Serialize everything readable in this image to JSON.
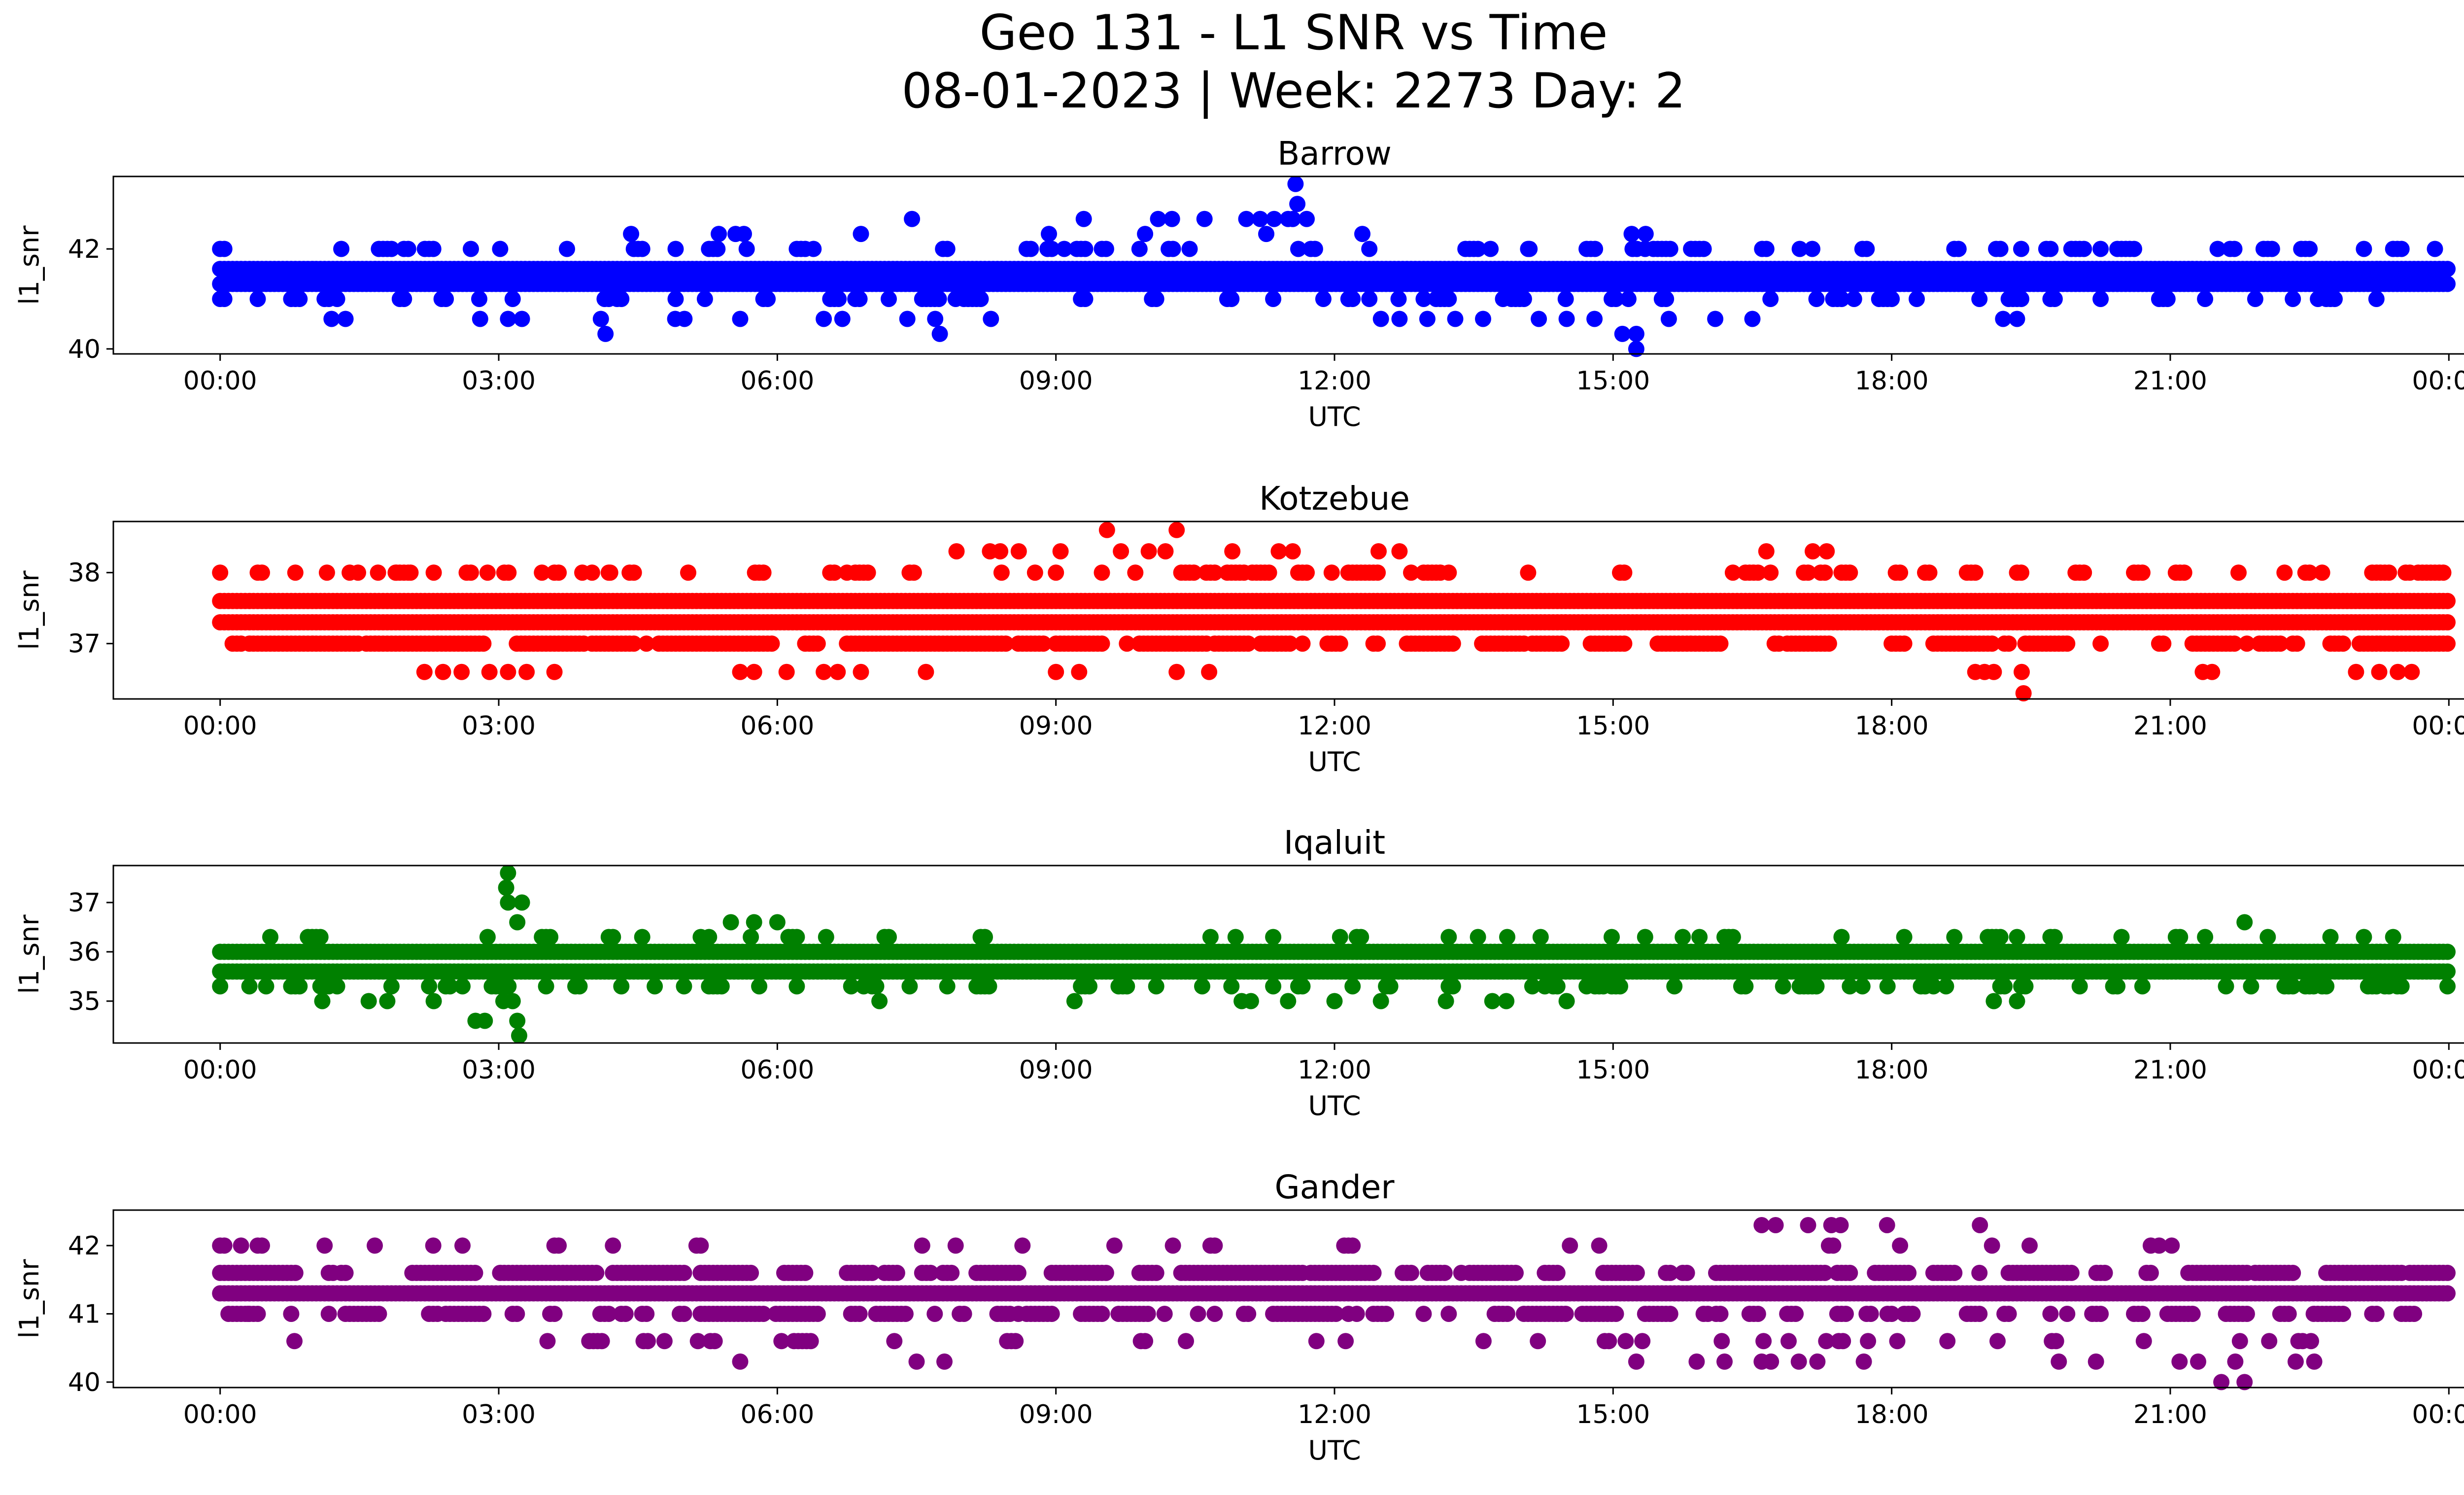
{
  "figure": {
    "title_line1": "Geo 131 - L1 SNR vs Time",
    "title_line2": "08-01-2023 | Week: 2273 Day: 2"
  },
  "chart_data": [
    {
      "type": "scatter",
      "title": "Barrow",
      "xlabel": "UTC",
      "ylabel": "l1_snr",
      "color": "#0000ff",
      "xlim_hours": [
        -1.15,
        25.15
      ],
      "ylim": [
        39.9,
        43.45
      ],
      "x_ticks": [
        "00:00",
        "03:00",
        "06:00",
        "09:00",
        "12:00",
        "15:00",
        "18:00",
        "21:00",
        "00:00"
      ],
      "y_ticks": [
        40,
        42
      ],
      "bands": [
        {
          "y": 41.0,
          "x_range": [
            0.0,
            24.0
          ],
          "density": 0.45
        },
        {
          "y": 41.3,
          "x_range": [
            0.0,
            24.0
          ],
          "density": 1.0
        },
        {
          "y": 41.6,
          "x_range": [
            0.0,
            24.0
          ],
          "density": 1.0
        },
        {
          "y": 42.0,
          "x_range": [
            0.0,
            24.0
          ],
          "density": 0.5
        },
        {
          "y": 42.3,
          "x_range": [
            0.6,
            11.8
          ],
          "density": 0.15
        }
      ],
      "points": [
        {
          "x": 1.2,
          "y": 40.6
        },
        {
          "x": 1.35,
          "y": 40.6
        },
        {
          "x": 2.8,
          "y": 40.6
        },
        {
          "x": 3.1,
          "y": 40.6
        },
        {
          "x": 3.25,
          "y": 40.6
        },
        {
          "x": 4.1,
          "y": 40.6
        },
        {
          "x": 4.15,
          "y": 40.3
        },
        {
          "x": 4.9,
          "y": 40.6
        },
        {
          "x": 5.0,
          "y": 40.6
        },
        {
          "x": 5.6,
          "y": 40.6
        },
        {
          "x": 6.5,
          "y": 40.6
        },
        {
          "x": 6.7,
          "y": 40.6
        },
        {
          "x": 7.4,
          "y": 40.6
        },
        {
          "x": 7.7,
          "y": 40.6
        },
        {
          "x": 7.75,
          "y": 40.3
        },
        {
          "x": 8.3,
          "y": 40.6
        },
        {
          "x": 7.45,
          "y": 42.6
        },
        {
          "x": 9.3,
          "y": 42.6
        },
        {
          "x": 10.1,
          "y": 42.6
        },
        {
          "x": 10.25,
          "y": 42.6
        },
        {
          "x": 10.6,
          "y": 42.6
        },
        {
          "x": 11.05,
          "y": 42.6
        },
        {
          "x": 11.2,
          "y": 42.6
        },
        {
          "x": 11.35,
          "y": 42.6
        },
        {
          "x": 11.55,
          "y": 42.6
        },
        {
          "x": 11.6,
          "y": 42.9
        },
        {
          "x": 11.58,
          "y": 43.3
        },
        {
          "x": 11.5,
          "y": 42.6
        },
        {
          "x": 11.7,
          "y": 42.6
        },
        {
          "x": 12.3,
          "y": 42.3
        },
        {
          "x": 12.5,
          "y": 40.6
        },
        {
          "x": 12.7,
          "y": 40.6
        },
        {
          "x": 13.0,
          "y": 40.6
        },
        {
          "x": 13.3,
          "y": 40.6
        },
        {
          "x": 13.6,
          "y": 40.6
        },
        {
          "x": 14.2,
          "y": 40.6
        },
        {
          "x": 14.5,
          "y": 40.6
        },
        {
          "x": 14.8,
          "y": 40.6
        },
        {
          "x": 15.1,
          "y": 40.3
        },
        {
          "x": 15.25,
          "y": 40.0
        },
        {
          "x": 15.25,
          "y": 40.3
        },
        {
          "x": 15.6,
          "y": 40.6
        },
        {
          "x": 16.1,
          "y": 40.6
        },
        {
          "x": 16.5,
          "y": 40.6
        },
        {
          "x": 19.2,
          "y": 40.6
        },
        {
          "x": 19.35,
          "y": 40.6
        },
        {
          "x": 15.2,
          "y": 42.3
        },
        {
          "x": 15.35,
          "y": 42.3
        },
        {
          "x": 14.1,
          "y": 42.0
        },
        {
          "x": 20.25,
          "y": 42.0
        }
      ]
    },
    {
      "type": "scatter",
      "title": "Kotzebue",
      "xlabel": "UTC",
      "ylabel": "l1_snr",
      "color": "#ff0000",
      "xlim_hours": [
        -1.15,
        25.15
      ],
      "ylim": [
        36.22,
        38.72
      ],
      "x_ticks": [
        "00:00",
        "03:00",
        "06:00",
        "09:00",
        "12:00",
        "15:00",
        "18:00",
        "21:00",
        "00:00"
      ],
      "y_ticks": [
        37,
        38
      ],
      "bands": [
        {
          "y": 37.0,
          "x_range": [
            0.0,
            24.0
          ],
          "density": 0.9
        },
        {
          "y": 37.3,
          "x_range": [
            0.0,
            24.0
          ],
          "density": 1.0
        },
        {
          "y": 37.6,
          "x_range": [
            0.0,
            24.0
          ],
          "density": 1.0
        },
        {
          "y": 38.0,
          "x_range": [
            0.0,
            24.0
          ],
          "density": 0.55
        },
        {
          "y": 38.3,
          "x_range": [
            5.5,
            12.8
          ],
          "density": 0.12
        }
      ],
      "points": [
        {
          "x": 2.2,
          "y": 36.6
        },
        {
          "x": 2.4,
          "y": 36.6
        },
        {
          "x": 2.6,
          "y": 36.6
        },
        {
          "x": 2.9,
          "y": 36.6
        },
        {
          "x": 3.1,
          "y": 36.6
        },
        {
          "x": 3.3,
          "y": 36.6
        },
        {
          "x": 3.6,
          "y": 36.6
        },
        {
          "x": 5.6,
          "y": 36.6
        },
        {
          "x": 5.75,
          "y": 36.6
        },
        {
          "x": 6.1,
          "y": 36.6
        },
        {
          "x": 6.5,
          "y": 36.6
        },
        {
          "x": 6.65,
          "y": 36.6
        },
        {
          "x": 6.9,
          "y": 36.6
        },
        {
          "x": 7.6,
          "y": 36.6
        },
        {
          "x": 9.0,
          "y": 36.6
        },
        {
          "x": 9.25,
          "y": 36.6
        },
        {
          "x": 10.3,
          "y": 36.6
        },
        {
          "x": 10.65,
          "y": 36.6
        },
        {
          "x": 18.9,
          "y": 36.6
        },
        {
          "x": 19.0,
          "y": 36.6
        },
        {
          "x": 19.1,
          "y": 36.6
        },
        {
          "x": 19.4,
          "y": 36.6
        },
        {
          "x": 19.42,
          "y": 36.3
        },
        {
          "x": 21.35,
          "y": 36.6
        },
        {
          "x": 21.45,
          "y": 36.6
        },
        {
          "x": 23.0,
          "y": 36.6
        },
        {
          "x": 23.25,
          "y": 36.6
        },
        {
          "x": 23.45,
          "y": 36.6
        },
        {
          "x": 23.6,
          "y": 36.6
        },
        {
          "x": 9.55,
          "y": 38.6
        },
        {
          "x": 10.3,
          "y": 38.6
        },
        {
          "x": 8.4,
          "y": 38.3
        },
        {
          "x": 8.6,
          "y": 38.3
        },
        {
          "x": 9.05,
          "y": 38.3
        },
        {
          "x": 9.7,
          "y": 38.3
        },
        {
          "x": 10.0,
          "y": 38.3
        },
        {
          "x": 10.9,
          "y": 38.3
        },
        {
          "x": 11.4,
          "y": 38.3
        },
        {
          "x": 11.55,
          "y": 38.3
        },
        {
          "x": 12.7,
          "y": 38.3
        },
        {
          "x": 16.65,
          "y": 38.3
        },
        {
          "x": 17.15,
          "y": 38.3
        },
        {
          "x": 17.3,
          "y": 38.3
        },
        {
          "x": 1.15,
          "y": 38.0
        },
        {
          "x": 1.7,
          "y": 38.0
        },
        {
          "x": 1.9,
          "y": 38.0
        },
        {
          "x": 2.05,
          "y": 38.0
        },
        {
          "x": 2.3,
          "y": 38.0
        },
        {
          "x": 3.9,
          "y": 38.0
        },
        {
          "x": 4.2,
          "y": 38.0
        }
      ]
    },
    {
      "type": "scatter",
      "title": "Iqaluit",
      "xlabel": "UTC",
      "ylabel": "l1_snr",
      "color": "#008000",
      "xlim_hours": [
        -1.15,
        25.15
      ],
      "ylim": [
        34.15,
        37.75
      ],
      "x_ticks": [
        "00:00",
        "03:00",
        "06:00",
        "09:00",
        "12:00",
        "15:00",
        "18:00",
        "21:00",
        "00:00"
      ],
      "y_ticks": [
        35,
        36,
        37
      ],
      "bands": [
        {
          "y": 35.3,
          "x_range": [
            0.0,
            24.0
          ],
          "density": 0.55
        },
        {
          "y": 35.6,
          "x_range": [
            0.0,
            24.0
          ],
          "density": 1.0
        },
        {
          "y": 36.0,
          "x_range": [
            0.0,
            24.0
          ],
          "density": 1.0
        },
        {
          "y": 36.3,
          "x_range": [
            0.0,
            24.0
          ],
          "density": 0.35
        }
      ],
      "points": [
        {
          "x": 3.1,
          "y": 37.6
        },
        {
          "x": 3.08,
          "y": 37.3
        },
        {
          "x": 3.1,
          "y": 37.0
        },
        {
          "x": 3.25,
          "y": 37.0
        },
        {
          "x": 3.2,
          "y": 36.6
        },
        {
          "x": 3.15,
          "y": 35.0
        },
        {
          "x": 3.2,
          "y": 34.6
        },
        {
          "x": 3.22,
          "y": 34.3
        },
        {
          "x": 2.75,
          "y": 34.6
        },
        {
          "x": 2.85,
          "y": 34.6
        },
        {
          "x": 3.05,
          "y": 35.0
        },
        {
          "x": 5.5,
          "y": 36.6
        },
        {
          "x": 5.75,
          "y": 36.6
        },
        {
          "x": 6.0,
          "y": 36.6
        },
        {
          "x": 21.8,
          "y": 36.6
        },
        {
          "x": 1.1,
          "y": 35.0
        },
        {
          "x": 1.6,
          "y": 35.0
        },
        {
          "x": 1.8,
          "y": 35.0
        },
        {
          "x": 2.3,
          "y": 35.0
        },
        {
          "x": 7.1,
          "y": 35.0
        },
        {
          "x": 9.2,
          "y": 35.0
        },
        {
          "x": 11.0,
          "y": 35.0
        },
        {
          "x": 11.1,
          "y": 35.0
        },
        {
          "x": 11.5,
          "y": 35.0
        },
        {
          "x": 12.0,
          "y": 35.0
        },
        {
          "x": 12.5,
          "y": 35.0
        },
        {
          "x": 13.2,
          "y": 35.0
        },
        {
          "x": 13.7,
          "y": 35.0
        },
        {
          "x": 13.85,
          "y": 35.0
        },
        {
          "x": 14.5,
          "y": 35.0
        },
        {
          "x": 19.1,
          "y": 35.0
        },
        {
          "x": 19.35,
          "y": 35.0
        }
      ]
    },
    {
      "type": "scatter",
      "title": "Gander",
      "xlabel": "UTC",
      "ylabel": "l1_snr",
      "color": "#800080",
      "xlim_hours": [
        -1.15,
        25.15
      ],
      "ylim": [
        39.92,
        42.52
      ],
      "x_ticks": [
        "00:00",
        "03:00",
        "06:00",
        "09:00",
        "12:00",
        "15:00",
        "18:00",
        "21:00",
        "00:00"
      ],
      "y_ticks": [
        40,
        41,
        42
      ],
      "bands": [
        {
          "y": 41.0,
          "x_range": [
            0.0,
            24.0
          ],
          "density": 0.75
        },
        {
          "y": 41.3,
          "x_range": [
            0.0,
            24.0
          ],
          "density": 1.0
        },
        {
          "y": 41.6,
          "x_range": [
            0.0,
            24.0
          ],
          "density": 0.9
        },
        {
          "y": 40.6,
          "x_range": [
            3.3,
            22.6
          ],
          "density": 0.4
        },
        {
          "y": 42.0,
          "x_range": [
            0.0,
            24.0
          ],
          "density": 0.2
        }
      ],
      "points": [
        {
          "x": 0.3,
          "y": 41.0
        },
        {
          "x": 0.8,
          "y": 40.6
        },
        {
          "x": 5.6,
          "y": 40.3
        },
        {
          "x": 7.5,
          "y": 40.3
        },
        {
          "x": 7.8,
          "y": 40.3
        },
        {
          "x": 15.25,
          "y": 40.3
        },
        {
          "x": 15.9,
          "y": 40.3
        },
        {
          "x": 16.2,
          "y": 40.3
        },
        {
          "x": 16.6,
          "y": 40.3
        },
        {
          "x": 16.7,
          "y": 40.3
        },
        {
          "x": 17.0,
          "y": 40.3
        },
        {
          "x": 17.2,
          "y": 40.3
        },
        {
          "x": 17.7,
          "y": 40.3
        },
        {
          "x": 19.8,
          "y": 40.3
        },
        {
          "x": 20.2,
          "y": 40.3
        },
        {
          "x": 21.1,
          "y": 40.3
        },
        {
          "x": 21.3,
          "y": 40.3
        },
        {
          "x": 21.55,
          "y": 40.0
        },
        {
          "x": 21.8,
          "y": 40.0
        },
        {
          "x": 21.7,
          "y": 40.3
        },
        {
          "x": 22.35,
          "y": 40.3
        },
        {
          "x": 22.55,
          "y": 40.3
        },
        {
          "x": 16.6,
          "y": 42.3
        },
        {
          "x": 16.75,
          "y": 42.3
        },
        {
          "x": 17.1,
          "y": 42.3
        },
        {
          "x": 17.35,
          "y": 42.3
        },
        {
          "x": 17.45,
          "y": 42.3
        },
        {
          "x": 17.95,
          "y": 42.3
        },
        {
          "x": 18.95,
          "y": 42.3
        },
        {
          "x": 10.4,
          "y": 40.6
        }
      ]
    }
  ]
}
